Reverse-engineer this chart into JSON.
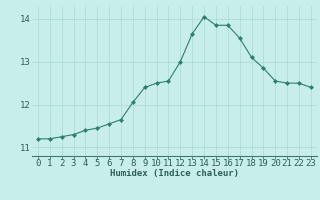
{
  "x": [
    0,
    1,
    2,
    3,
    4,
    5,
    6,
    7,
    8,
    9,
    10,
    11,
    12,
    13,
    14,
    15,
    16,
    17,
    18,
    19,
    20,
    21,
    22,
    23
  ],
  "y": [
    11.2,
    11.2,
    11.25,
    11.3,
    11.4,
    11.45,
    11.55,
    11.65,
    12.05,
    12.4,
    12.5,
    12.55,
    13.0,
    13.65,
    14.05,
    13.85,
    13.85,
    13.55,
    13.1,
    12.85,
    12.55,
    12.5,
    12.5,
    12.4
  ],
  "line_color": "#2e7f6e",
  "marker": "D",
  "marker_size": 2.0,
  "bg_color": "#c8eeea",
  "grid_color": "#aad8d3",
  "xlabel": "Humidex (Indice chaleur)",
  "ylim": [
    10.8,
    14.3
  ],
  "yticks": [
    11,
    12,
    13,
    14
  ],
  "xticks": [
    0,
    1,
    2,
    3,
    4,
    5,
    6,
    7,
    8,
    9,
    10,
    11,
    12,
    13,
    14,
    15,
    16,
    17,
    18,
    19,
    20,
    21,
    22,
    23
  ],
  "label_fontsize": 6.5,
  "tick_fontsize": 6.5
}
